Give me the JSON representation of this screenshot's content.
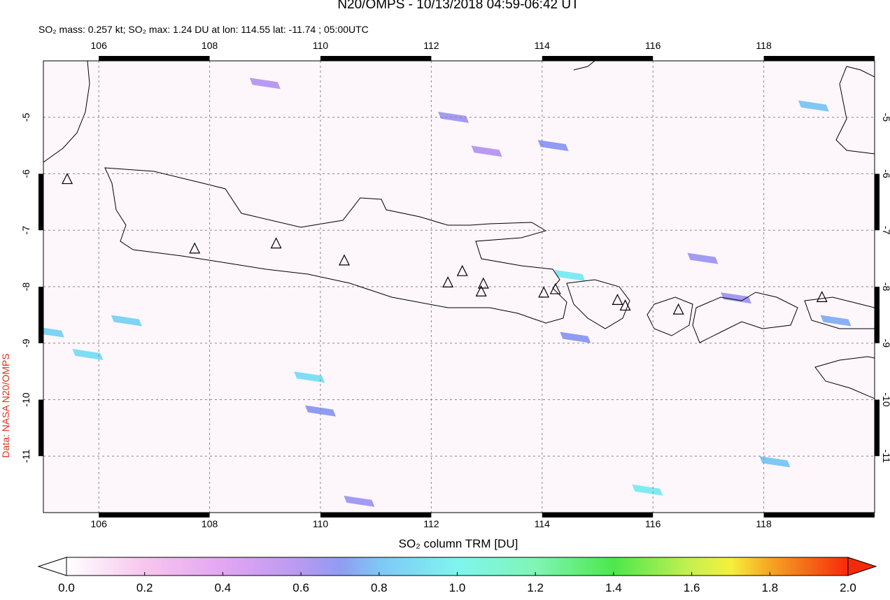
{
  "chart_data": {
    "type": "map",
    "title": "N20/OMPS - 10/13/2018 04:59-06:42 UT",
    "subtitle": "SO₂ mass: 0.257 kt; SO₂ max: 1.24 DU at lon: 114.55 lat: -11.74 ; 05:00UTC",
    "credit": "Data: NASA N20/OMPS",
    "xlim": [
      105,
      120
    ],
    "ylim": [
      -12,
      -4
    ],
    "xticks": [
      106,
      108,
      110,
      112,
      114,
      116,
      118
    ],
    "yticks": [
      -5,
      -6,
      -7,
      -8,
      -9,
      -10,
      -11
    ],
    "grid": true,
    "colorbar": {
      "label": "SO₂ column TRM [DU]",
      "lim": [
        0,
        2
      ],
      "ticks": [
        {
          "value": 0,
          "label": "0.0"
        },
        {
          "value": 0.2,
          "label": "0.2"
        },
        {
          "value": 0.4,
          "label": "0.4"
        },
        {
          "value": 0.6,
          "label": "0.6"
        },
        {
          "value": 0.8,
          "label": "0.8"
        },
        {
          "value": 1,
          "label": "1.0"
        },
        {
          "value": 1.2,
          "label": "1.2"
        },
        {
          "value": 1.4,
          "label": "1.4"
        },
        {
          "value": 1.6,
          "label": "1.6"
        },
        {
          "value": 1.8,
          "label": "1.8"
        },
        {
          "value": 2,
          "label": "2.0"
        }
      ],
      "colorscale": [
        [
          0,
          "#ffffff"
        ],
        [
          0.2,
          "#f7c6ee"
        ],
        [
          0.4,
          "#e3a6f2"
        ],
        [
          0.6,
          "#b89af0"
        ],
        [
          0.7,
          "#8f9cf2"
        ],
        [
          0.8,
          "#7fc7f5"
        ],
        [
          1,
          "#7ff5f0"
        ],
        [
          1.2,
          "#7ff5b5"
        ],
        [
          1.4,
          "#4ce84c"
        ],
        [
          1.6,
          "#c8f050"
        ],
        [
          1.7,
          "#f5f03c"
        ],
        [
          1.8,
          "#f5a623"
        ],
        [
          2,
          "#f52a0a"
        ]
      ]
    },
    "pixels": {
      "lon": [
        114.5,
        109.8,
        115.9,
        106.5,
        105.1,
        105.8,
        118.9,
        118.2,
        114.2,
        114.6,
        116.9,
        119.3,
        112.4,
        110.7,
        110.0,
        109.0,
        113.0,
        117.5
      ],
      "lat": [
        -7.8,
        -9.6,
        -11.6,
        -8.6,
        -8.8,
        -9.2,
        -4.8,
        -11.1,
        -5.5,
        -8.9,
        -7.5,
        -8.6,
        -5.0,
        -11.8,
        -10.2,
        -4.4,
        -5.6,
        -8.2
      ],
      "values": [
        0.95,
        0.9,
        0.95,
        0.85,
        0.85,
        0.9,
        0.8,
        0.8,
        0.7,
        0.7,
        0.65,
        0.75,
        0.65,
        0.65,
        0.7,
        0.6,
        0.6,
        0.65
      ]
    },
    "volcanoes": {
      "lon": [
        105.43,
        107.73,
        109.2,
        110.43,
        112.3,
        112.56,
        112.94,
        112.9,
        114.03,
        114.24,
        115.36,
        115.5,
        116.46,
        119.05
      ],
      "lat": [
        -6.1,
        -7.33,
        -7.24,
        -7.54,
        -7.93,
        -7.73,
        -7.95,
        -8.09,
        -8.11,
        -8.05,
        -8.24,
        -8.34,
        -8.41,
        -8.19
      ]
    }
  }
}
